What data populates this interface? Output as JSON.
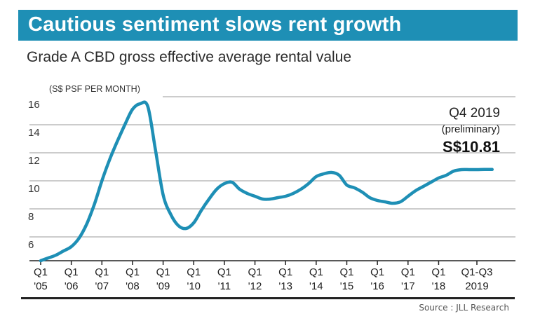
{
  "header": {
    "title": "Cautious sentiment slows rent growth",
    "subtitle": "Grade A CBD gross effective average rental value"
  },
  "source": "Source : JLL Research",
  "colors": {
    "accent": "#1e8fb5",
    "line": "#1e8fb5",
    "grid": "#9a9a9a",
    "text": "#222222"
  },
  "chart_data": {
    "type": "line",
    "unit_label": "(S$ PSF PER MONTH)",
    "ylim": [
      4,
      16.5
    ],
    "y_ticks": [
      6,
      8,
      10,
      12,
      14,
      16
    ],
    "y_tick_labels": [
      "6",
      "8",
      "10",
      "12",
      "14",
      "16"
    ],
    "x_ticks": [
      {
        "x": 2005,
        "top": "Q1",
        "bottom": "'05"
      },
      {
        "x": 2006,
        "top": "Q1",
        "bottom": "'06"
      },
      {
        "x": 2007,
        "top": "Q1",
        "bottom": "'07"
      },
      {
        "x": 2008,
        "top": "Q1",
        "bottom": "'08"
      },
      {
        "x": 2009,
        "top": "Q1",
        "bottom": "'09"
      },
      {
        "x": 2010,
        "top": "Q1",
        "bottom": "'10"
      },
      {
        "x": 2011,
        "top": "Q1",
        "bottom": "'11"
      },
      {
        "x": 2012,
        "top": "Q1",
        "bottom": "'12"
      },
      {
        "x": 2013,
        "top": "Q1",
        "bottom": "'13"
      },
      {
        "x": 2014,
        "top": "Q1",
        "bottom": "'14"
      },
      {
        "x": 2015,
        "top": "Q1",
        "bottom": "'15"
      },
      {
        "x": 2016,
        "top": "Q1",
        "bottom": "'16"
      },
      {
        "x": 2017,
        "top": "Q1",
        "bottom": "'17"
      },
      {
        "x": 2018,
        "top": "Q1",
        "bottom": "'18"
      },
      {
        "x": 2019.25,
        "top": "Q1-Q3",
        "bottom": "2019"
      }
    ],
    "x": [
      2005,
      2005.25,
      2005.5,
      2005.75,
      2006,
      2006.25,
      2006.5,
      2006.75,
      2007,
      2007.25,
      2007.5,
      2007.75,
      2008,
      2008.25,
      2008.5,
      2008.75,
      2009,
      2009.25,
      2009.5,
      2009.75,
      2010,
      2010.25,
      2010.5,
      2010.75,
      2011,
      2011.25,
      2011.5,
      2011.75,
      2012,
      2012.25,
      2012.5,
      2012.75,
      2013,
      2013.25,
      2013.5,
      2013.75,
      2014,
      2014.25,
      2014.5,
      2014.75,
      2015,
      2015.25,
      2015.5,
      2015.75,
      2016,
      2016.25,
      2016.5,
      2016.75,
      2017,
      2017.25,
      2017.5,
      2017.75,
      2018,
      2018.25,
      2018.5,
      2018.75,
      2019,
      2019.25,
      2019.5,
      2019.75
    ],
    "series": [
      {
        "values": [
          4.3,
          4.5,
          4.7,
          5.0,
          5.3,
          5.9,
          6.9,
          8.3,
          10.0,
          11.5,
          12.8,
          14.0,
          15.1,
          15.5,
          15.3,
          12.2,
          9.0,
          7.6,
          6.8,
          6.6,
          7.0,
          7.9,
          8.7,
          9.4,
          9.8,
          9.9,
          9.4,
          9.1,
          8.9,
          8.7,
          8.7,
          8.8,
          8.9,
          9.1,
          9.4,
          9.8,
          10.3,
          10.5,
          10.6,
          10.4,
          9.7,
          9.5,
          9.2,
          8.8,
          8.6,
          8.5,
          8.4,
          8.5,
          8.9,
          9.3,
          9.6,
          9.9,
          10.2,
          10.4,
          10.7,
          10.8,
          10.8,
          10.8,
          10.81,
          10.81
        ]
      }
    ],
    "annotation": {
      "period": "Q4 2019",
      "note": "(preliminary)",
      "value_label": "S$10.81"
    }
  }
}
